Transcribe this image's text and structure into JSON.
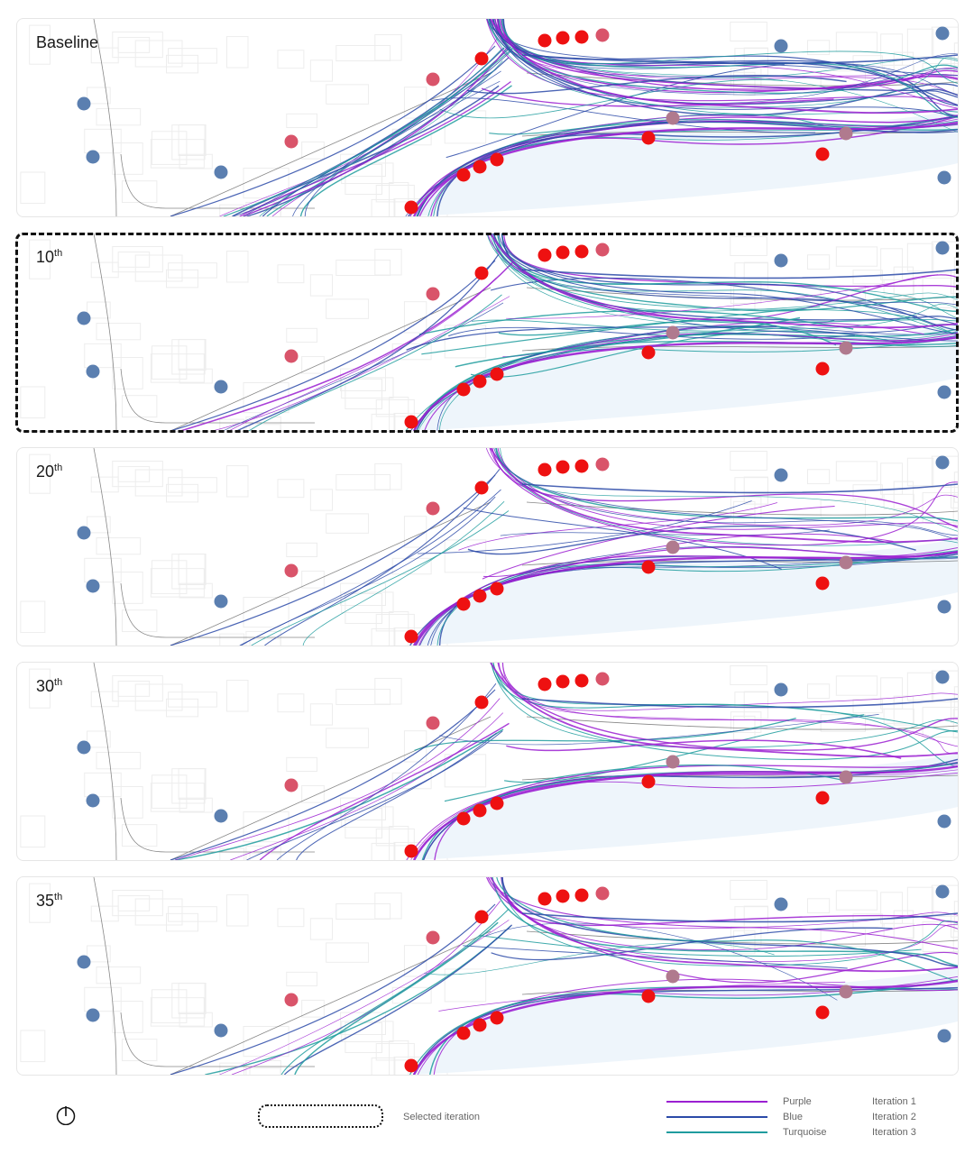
{
  "panels": [
    {
      "id": "baseline",
      "label": "Baseline",
      "sup": "",
      "density": 1.0
    },
    {
      "id": "10",
      "label": "10",
      "sup": "th",
      "density": 0.7
    },
    {
      "id": "20",
      "label": "20",
      "sup": "th",
      "density": 0.5
    },
    {
      "id": "30",
      "label": "30",
      "sup": "th",
      "density": 0.45
    },
    {
      "id": "35",
      "label": "35",
      "sup": "th",
      "density": 0.45
    }
  ],
  "selected_panel": 1,
  "legend": {
    "selected_label": "Selected iteration",
    "entries": [
      {
        "color_name": "Purple",
        "iteration": "Iteration 1",
        "color": "#9b1fd1"
      },
      {
        "color_name": "Blue",
        "iteration": "Iteration 2",
        "color": "#2b4aa8"
      },
      {
        "color_name": "Turquoise",
        "iteration": "Iteration 3",
        "color": "#1f9c9e"
      }
    ],
    "compass_icon": "compass-icon"
  },
  "colors": {
    "red_marker": "#ee1111",
    "pink_marker": "#d9546a",
    "mauve_marker": "#b07a8e",
    "blue_marker": "#5b7fb0",
    "water": "#eef5fb"
  }
}
